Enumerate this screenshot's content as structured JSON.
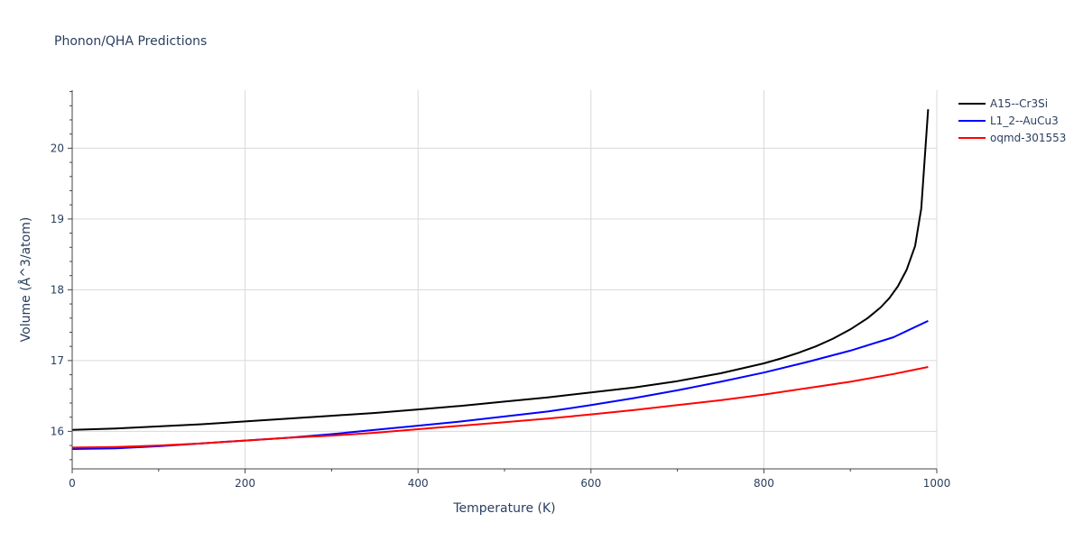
{
  "chart_data": {
    "type": "line",
    "title": "Phonon/QHA Predictions",
    "xlabel": "Temperature (K)",
    "ylabel": "Volume (Å^3/atom)",
    "xlim": [
      0,
      1000
    ],
    "ylim": [
      15.47,
      20.82
    ],
    "x_ticks": [
      0,
      200,
      400,
      600,
      800,
      1000
    ],
    "y_ticks": [
      16,
      17,
      18,
      19,
      20
    ],
    "grid": true,
    "legend_position": "top-right",
    "series": [
      {
        "name": "A15--Cr3Si",
        "color": "#000000",
        "x": [
          0,
          50,
          100,
          150,
          200,
          250,
          300,
          350,
          400,
          450,
          500,
          550,
          600,
          650,
          700,
          750,
          800,
          820,
          840,
          860,
          880,
          900,
          920,
          935,
          945,
          955,
          965,
          975,
          982,
          990
        ],
        "y": [
          16.02,
          16.04,
          16.07,
          16.1,
          16.14,
          16.18,
          16.22,
          16.26,
          16.31,
          16.36,
          16.42,
          16.48,
          16.55,
          16.62,
          16.71,
          16.82,
          16.96,
          17.03,
          17.11,
          17.2,
          17.31,
          17.44,
          17.6,
          17.75,
          17.88,
          18.05,
          18.28,
          18.62,
          19.15,
          20.55
        ]
      },
      {
        "name": "L1_2--AuCu3",
        "color": "#0000ff",
        "x": [
          0,
          50,
          100,
          150,
          200,
          250,
          300,
          350,
          400,
          450,
          500,
          550,
          600,
          650,
          700,
          750,
          800,
          850,
          900,
          950,
          990
        ],
        "y": [
          15.75,
          15.76,
          15.79,
          15.83,
          15.87,
          15.91,
          15.96,
          16.02,
          16.08,
          16.14,
          16.21,
          16.28,
          16.37,
          16.47,
          16.58,
          16.7,
          16.83,
          16.98,
          17.14,
          17.33,
          17.56
        ]
      },
      {
        "name": "oqmd-301553",
        "color": "#ff0000",
        "x": [
          0,
          50,
          100,
          150,
          200,
          250,
          300,
          350,
          400,
          450,
          500,
          550,
          600,
          650,
          700,
          750,
          800,
          850,
          900,
          950,
          990
        ],
        "y": [
          15.77,
          15.78,
          15.8,
          15.83,
          15.87,
          15.91,
          15.94,
          15.98,
          16.03,
          16.08,
          16.13,
          16.18,
          16.24,
          16.3,
          16.37,
          16.44,
          16.52,
          16.61,
          16.7,
          16.81,
          16.91
        ]
      }
    ]
  }
}
